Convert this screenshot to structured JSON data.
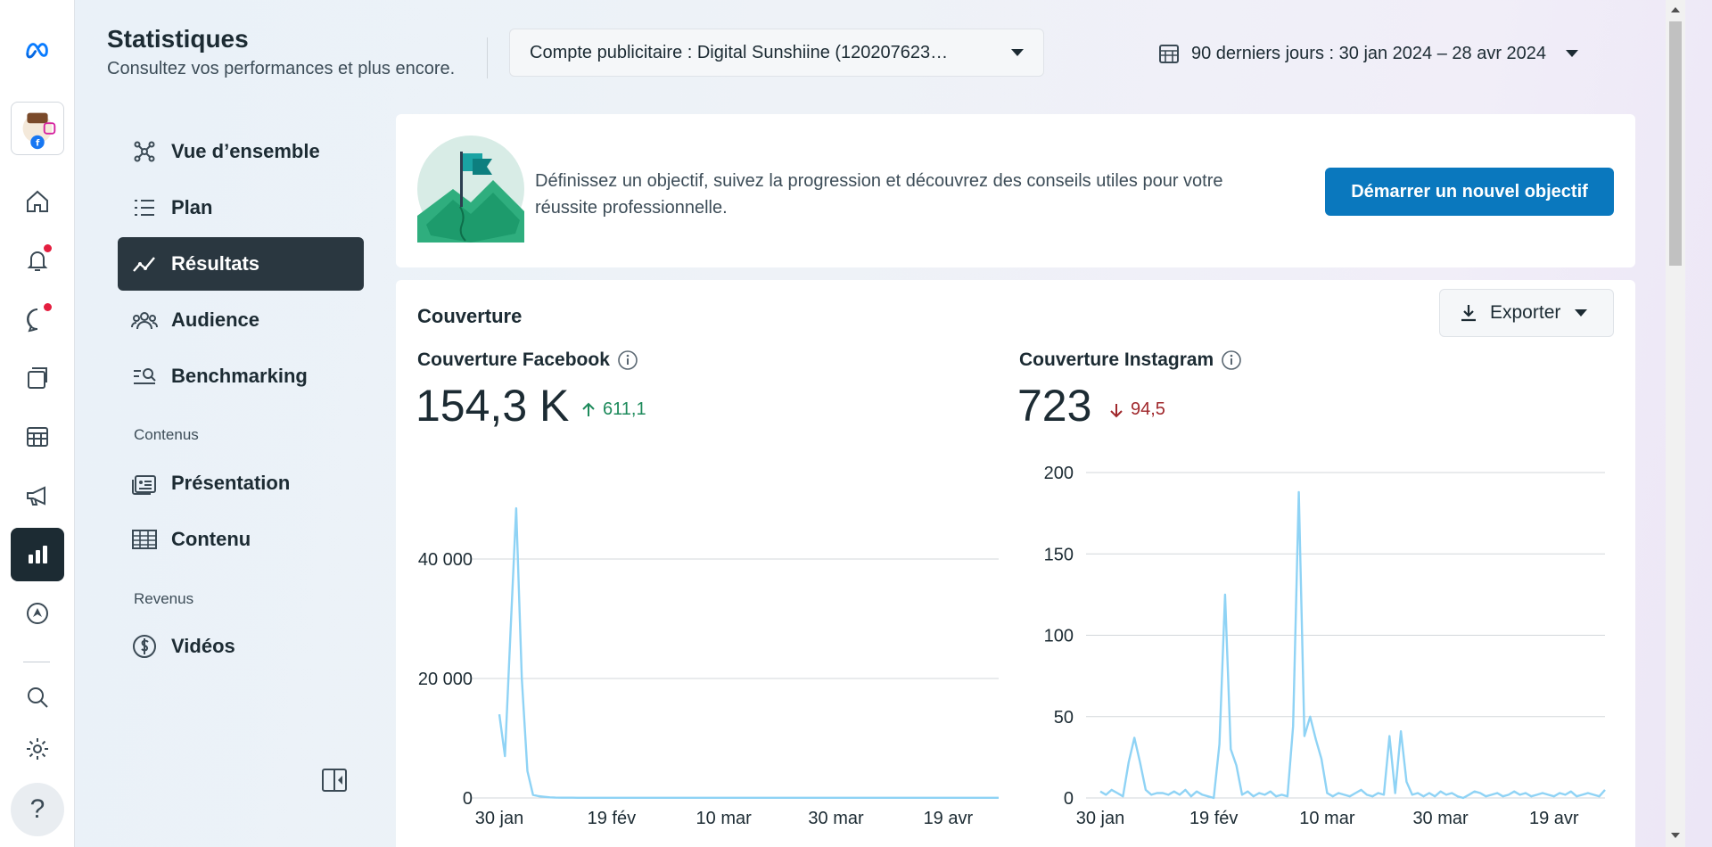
{
  "header": {
    "title": "Statistiques",
    "subtitle": "Consultez vos performances et plus encore.",
    "account_selector": "Compte publicitaire : Digital Sunshiine (120207623…",
    "date_range": "90 derniers jours : 30 jan 2024 – 28 avr 2024"
  },
  "rail": {
    "items": [
      "meta-logo",
      "account-avatar",
      "home",
      "notifications",
      "messages",
      "content",
      "planner",
      "ads",
      "insights",
      "monetization",
      "search",
      "settings",
      "help"
    ],
    "help_label": "?"
  },
  "nav": {
    "items": [
      {
        "label": "Vue d’ensemble",
        "icon": "network-icon"
      },
      {
        "label": "Plan",
        "icon": "list-icon"
      },
      {
        "label": "Résultats",
        "icon": "trend-icon",
        "active": true
      },
      {
        "label": "Audience",
        "icon": "people-icon"
      },
      {
        "label": "Benchmarking",
        "icon": "benchmark-icon"
      }
    ],
    "section_content": "Contenus",
    "content_items": [
      {
        "label": "Présentation",
        "icon": "presentation-icon"
      },
      {
        "label": "Contenu",
        "icon": "table-icon"
      }
    ],
    "section_revenue": "Revenus",
    "revenue_items": [
      {
        "label": "Vidéos",
        "icon": "dollar-icon"
      }
    ]
  },
  "goal": {
    "text": "Définissez un objectif, suivez la progression et découvrez des conseils utiles pour votre réussite professionnelle.",
    "button": "Démarrer un nouvel objectif"
  },
  "coverage": {
    "title": "Couverture",
    "export_label": "Exporter",
    "facebook": {
      "label": "Couverture Facebook",
      "value": "154,3 K",
      "delta": "611,1",
      "delta_direction": "up",
      "delta_color": "#1d8a5b"
    },
    "instagram": {
      "label": "Couverture Instagram",
      "value": "723",
      "delta": "94,5",
      "delta_direction": "down",
      "delta_color": "#a0282c"
    }
  },
  "chart_data": [
    {
      "type": "line",
      "series": [
        {
          "values": [
            14000,
            7000,
            28000,
            48500,
            20000,
            4500,
            500,
            300,
            200,
            100,
            60,
            50,
            40,
            40,
            30,
            30,
            30,
            30,
            30,
            30,
            30,
            30,
            30,
            30,
            30,
            30,
            30,
            30,
            30,
            30,
            30,
            30,
            30,
            30,
            30,
            30,
            30,
            30,
            30,
            30,
            30,
            30,
            30,
            30,
            30,
            30,
            30,
            30,
            30,
            30,
            30,
            30,
            30,
            30,
            30,
            30,
            30,
            30,
            30,
            30,
            30,
            30,
            30,
            30,
            30,
            30,
            30,
            30,
            30,
            30,
            30,
            30,
            30,
            30,
            30,
            30,
            30,
            30,
            30,
            30,
            30,
            30,
            30,
            30,
            30,
            30,
            30,
            30,
            30,
            30
          ]
        }
      ],
      "x_start": "2024-01-30",
      "x_end": "2024-04-28",
      "xtick_labels": [
        "30 jan",
        "19 fév",
        "10 mar",
        "30 mar",
        "19 avr"
      ],
      "ytick_labels": [
        "0",
        "20 000",
        "40 000"
      ],
      "yticks": [
        0,
        20000,
        40000
      ],
      "ylim": [
        0,
        50000
      ],
      "grid": true,
      "color": "#8fd3f5"
    },
    {
      "type": "line",
      "series": [
        {
          "values": [
            4,
            2,
            5,
            3,
            1,
            22,
            37,
            22,
            5,
            2,
            3,
            3,
            2,
            4,
            2,
            5,
            1,
            4,
            2,
            1,
            0,
            33,
            125,
            30,
            20,
            2,
            4,
            1,
            3,
            2,
            4,
            1,
            2,
            1,
            44,
            188,
            38,
            50,
            36,
            24,
            3,
            1,
            3,
            2,
            1,
            3,
            5,
            2,
            1,
            3,
            2,
            38,
            3,
            41,
            10,
            2,
            3,
            1,
            3,
            1,
            4,
            2,
            3,
            1,
            0,
            2,
            4,
            3,
            1,
            2,
            3,
            1,
            2,
            4,
            2,
            3,
            1,
            2,
            3,
            2,
            1,
            3,
            2,
            4,
            1,
            2,
            3,
            2,
            1,
            5
          ]
        }
      ],
      "x_start": "2024-01-30",
      "x_end": "2024-04-28",
      "xtick_labels": [
        "30 jan",
        "19 fév",
        "10 mar",
        "30 mar",
        "19 avr"
      ],
      "ytick_labels": [
        "0",
        "50",
        "100",
        "150",
        "200"
      ],
      "yticks": [
        0,
        50,
        100,
        150,
        200
      ],
      "ylim": [
        0,
        200
      ],
      "grid": true,
      "color": "#8fd3f5"
    }
  ]
}
